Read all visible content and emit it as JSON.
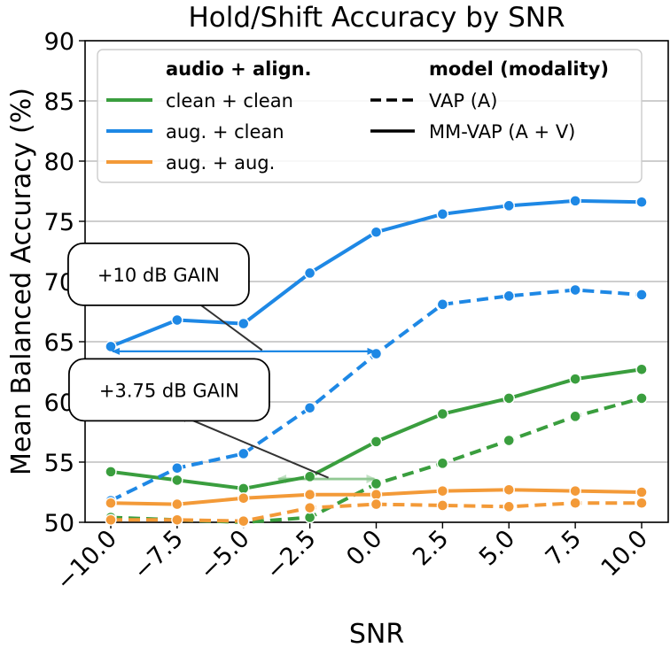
{
  "chart_data": {
    "type": "line",
    "title": "Hold/Shift Accuracy by SNR",
    "xlabel": "SNR",
    "ylabel": "Mean Balanced Accuracy (%)",
    "x": [
      -10.0,
      -7.5,
      -5.0,
      -2.5,
      0.0,
      2.5,
      5.0,
      7.5,
      10.0
    ],
    "x_tick_labels": [
      "−10.0",
      "−7.5",
      "−5.0",
      "−2.5",
      "0.0",
      "2.5",
      "5.0",
      "7.5",
      "10.0"
    ],
    "y_ticks": [
      50,
      55,
      60,
      65,
      70,
      75,
      80,
      85,
      90
    ],
    "ylim": [
      50,
      90
    ],
    "xlim": [
      -10.0,
      10.0
    ],
    "grid": "horizontal",
    "legend": {
      "placement": "top",
      "audio_header": "audio + align.",
      "model_header": "model (modality)",
      "audio_entries": [
        {
          "label": "clean + clean",
          "color": "#3a9e3e"
        },
        {
          "label": "aug. + clean",
          "color": "#1e88e5"
        },
        {
          "label": "aug. + aug.",
          "color": "#f39a38"
        }
      ],
      "model_entries": [
        {
          "label": "VAP (A)",
          "style": "dashed"
        },
        {
          "label": "MM-VAP (A + V)",
          "style": "solid"
        }
      ]
    },
    "series": [
      {
        "name": "clean + clean — MM-VAP (A + V)",
        "color": "#3a9e3e",
        "style": "solid",
        "values": [
          54.2,
          53.5,
          52.8,
          53.8,
          56.7,
          59.0,
          60.3,
          61.9,
          62.7
        ]
      },
      {
        "name": "clean + clean — VAP (A)",
        "color": "#3a9e3e",
        "style": "dashed",
        "values": [
          50.4,
          50.2,
          50.0,
          50.4,
          53.2,
          54.9,
          56.8,
          58.8,
          60.3
        ]
      },
      {
        "name": "aug. + clean — MM-VAP (A + V)",
        "color": "#1e88e5",
        "style": "solid",
        "values": [
          64.6,
          66.8,
          66.5,
          70.7,
          74.1,
          75.6,
          76.3,
          76.7,
          76.6
        ]
      },
      {
        "name": "aug. + clean — VAP (A)",
        "color": "#1e88e5",
        "style": "dashed",
        "values": [
          51.8,
          54.5,
          55.7,
          59.5,
          64.0,
          68.1,
          68.8,
          69.3,
          68.9
        ]
      },
      {
        "name": "aug. + aug. — MM-VAP (A + V)",
        "color": "#f39a38",
        "style": "solid",
        "values": [
          51.6,
          51.5,
          52.0,
          52.3,
          52.3,
          52.6,
          52.7,
          52.6,
          52.5
        ]
      },
      {
        "name": "aug. + aug. — VAP (A)",
        "color": "#f39a38",
        "style": "dashed",
        "values": [
          50.2,
          50.2,
          50.1,
          51.2,
          51.5,
          51.4,
          51.3,
          51.6,
          51.6
        ]
      }
    ],
    "annotations": [
      {
        "text": "+10 dB GAIN",
        "color": "#1e88e5",
        "span_x": [
          -10.0,
          0.0
        ],
        "span_y": 64.2,
        "label_at": [
          -8.2,
          70.6
        ],
        "pointer_tip": [
          -7.2,
          69.0
        ],
        "pointer_tail": [
          -4.3,
          64.3
        ]
      },
      {
        "text": "+3.75 dB GAIN",
        "color": "#3a9e3e",
        "span_x": [
          -3.75,
          0.0
        ],
        "span_y": 53.6,
        "label_at": [
          -7.8,
          61.0
        ],
        "pointer_tip": [
          -7.5,
          59.0
        ],
        "pointer_tail": [
          -1.8,
          53.7
        ]
      }
    ]
  }
}
